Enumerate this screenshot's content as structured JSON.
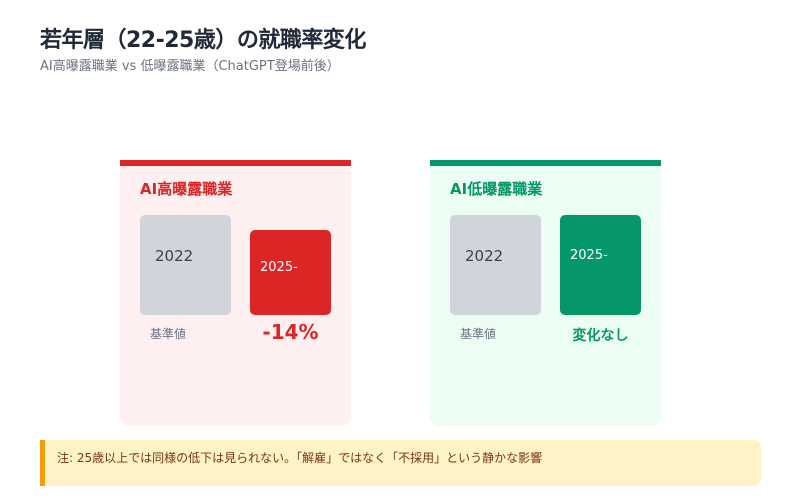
{
  "header": {
    "title": "若年層（22-25歳）の就職率変化",
    "subtitle": "AI高曝露職業 vs 低曝露職業（ChatGPT登場前後）"
  },
  "chart_data": [
    {
      "type": "bar",
      "title": "AI高曝露職業",
      "categories": [
        "2022",
        "2025-"
      ],
      "values": [
        100,
        86
      ],
      "baseline_caption": "基準値",
      "change_label": "-14%",
      "colors": {
        "accent": "#dc2626",
        "base": "#d1d5db",
        "panel_bg": "#fef0f0"
      }
    },
    {
      "type": "bar",
      "title": "AI低曝露職業",
      "categories": [
        "2022",
        "2025-"
      ],
      "values": [
        100,
        100
      ],
      "baseline_caption": "基準値",
      "change_label": "変化なし",
      "colors": {
        "accent": "#059669",
        "base": "#d1d5db",
        "panel_bg": "#ecfdf3"
      }
    }
  ],
  "note": {
    "text": "注: 25歳以上では同様の低下は見られない。「解雇」ではなく「不採用」という静かな影響",
    "colors": {
      "background": "#fef3c7",
      "border": "#f59e0b"
    }
  }
}
